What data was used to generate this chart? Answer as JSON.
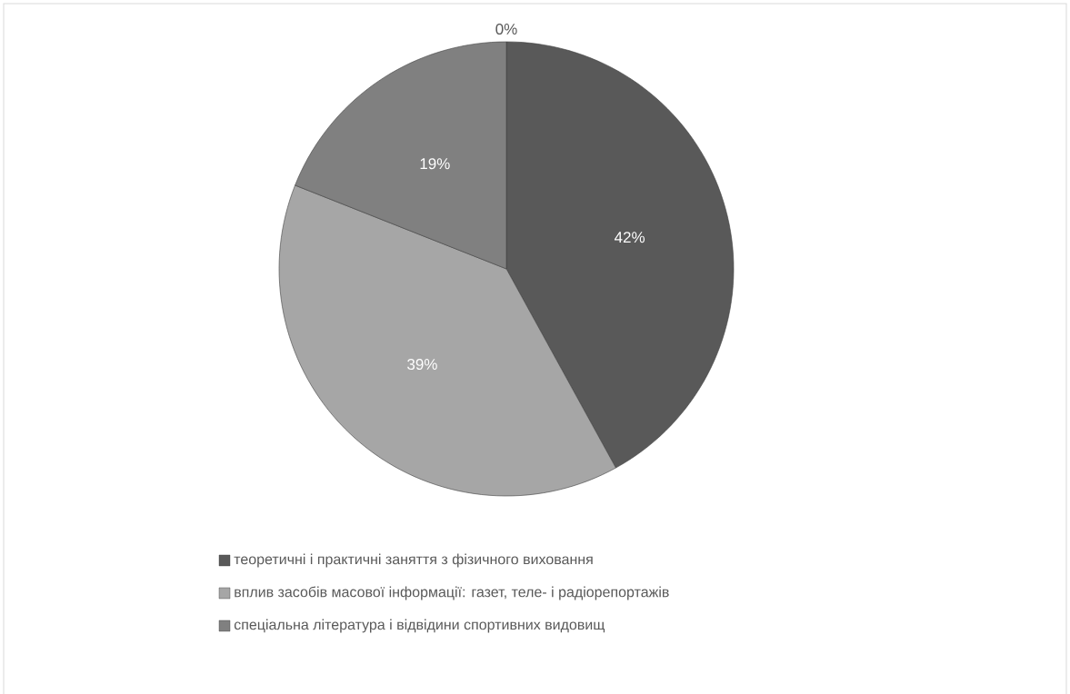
{
  "chart_data": {
    "type": "pie",
    "categories": [
      "теоретичні і практичні заняття з фізичного виховання",
      "вплив засобів масової інформації: газет, теле- і радіорепортажів",
      "спеціальна література і відвідини спортивних видовищ",
      null
    ],
    "values": [
      42,
      39,
      19,
      0
    ],
    "value_labels": [
      "42%",
      "39%",
      "19%",
      "0%"
    ],
    "colors": [
      "#595959",
      "#a6a6a6",
      "#808080",
      "#404040"
    ],
    "legend": "bottom"
  }
}
